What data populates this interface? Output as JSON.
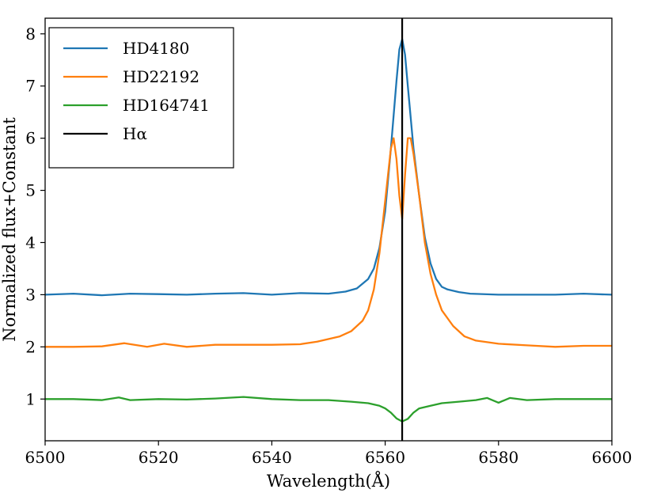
{
  "chart_data": {
    "type": "line",
    "xlabel": "Wavelength(Å)",
    "ylabel": "Normalized flux+Constant",
    "xlim": [
      6500,
      6600
    ],
    "ylim": [
      0.2,
      8.3
    ],
    "xticks": [
      6500,
      6520,
      6540,
      6560,
      6580,
      6600
    ],
    "yticks": [
      1,
      2,
      3,
      4,
      5,
      6,
      7,
      8
    ],
    "grid": false,
    "legend_position": "top-left",
    "vline": {
      "name": "Hα",
      "x": 6563,
      "color": "#000000"
    },
    "series": [
      {
        "name": "HD4180",
        "color": "#1f77b4",
        "x": [
          6500,
          6505,
          6510,
          6515,
          6520,
          6525,
          6530,
          6535,
          6540,
          6545,
          6550,
          6553,
          6555,
          6557,
          6558,
          6559,
          6560,
          6561,
          6562,
          6562.5,
          6563,
          6563.5,
          6564,
          6565,
          6566,
          6567,
          6568,
          6569,
          6570,
          6571,
          6573,
          6575,
          6580,
          6585,
          6590,
          6595,
          6600
        ],
        "y": [
          3.0,
          3.02,
          2.99,
          3.02,
          3.01,
          3.0,
          3.02,
          3.03,
          3.0,
          3.03,
          3.02,
          3.06,
          3.12,
          3.3,
          3.5,
          3.9,
          4.6,
          5.8,
          7.1,
          7.7,
          7.9,
          7.6,
          7.0,
          5.8,
          4.9,
          4.1,
          3.6,
          3.3,
          3.15,
          3.1,
          3.05,
          3.02,
          3.0,
          3.0,
          3.0,
          3.02,
          3.0
        ]
      },
      {
        "name": "HD22192",
        "color": "#ff7f0e",
        "x": [
          6500,
          6505,
          6510,
          6514,
          6518,
          6521,
          6525,
          6530,
          6535,
          6540,
          6545,
          6548,
          6552,
          6554,
          6556,
          6557,
          6558,
          6559,
          6560,
          6561,
          6561.5,
          6562,
          6562.5,
          6563,
          6563.5,
          6564,
          6564.5,
          6565,
          6566,
          6567,
          6568,
          6569,
          6570,
          6572,
          6574,
          6576,
          6580,
          6585,
          6590,
          6595,
          6600
        ],
        "y": [
          2.0,
          2.0,
          2.01,
          2.07,
          2.0,
          2.06,
          2.0,
          2.04,
          2.04,
          2.04,
          2.05,
          2.1,
          2.2,
          2.3,
          2.5,
          2.7,
          3.1,
          3.8,
          4.8,
          5.8,
          6.0,
          5.6,
          4.9,
          4.45,
          5.3,
          6.0,
          6.0,
          5.7,
          4.9,
          4.0,
          3.4,
          3.0,
          2.7,
          2.4,
          2.2,
          2.12,
          2.06,
          2.03,
          2.0,
          2.02,
          2.02
        ]
      },
      {
        "name": "HD164741",
        "color": "#2ca02c",
        "x": [
          6500,
          6505,
          6510,
          6513,
          6515,
          6520,
          6525,
          6530,
          6535,
          6540,
          6545,
          6550,
          6554,
          6557,
          6559,
          6560,
          6561,
          6562,
          6563,
          6564,
          6565,
          6566,
          6568,
          6570,
          6573,
          6576,
          6578,
          6580,
          6582,
          6585,
          6590,
          6595,
          6600
        ],
        "y": [
          1.0,
          1.0,
          0.98,
          1.03,
          0.98,
          1.0,
          0.99,
          1.01,
          1.04,
          1.0,
          0.98,
          0.98,
          0.95,
          0.92,
          0.87,
          0.82,
          0.74,
          0.63,
          0.57,
          0.62,
          0.74,
          0.82,
          0.87,
          0.92,
          0.95,
          0.98,
          1.02,
          0.93,
          1.02,
          0.98,
          1.0,
          1.0,
          1.0
        ]
      }
    ]
  }
}
